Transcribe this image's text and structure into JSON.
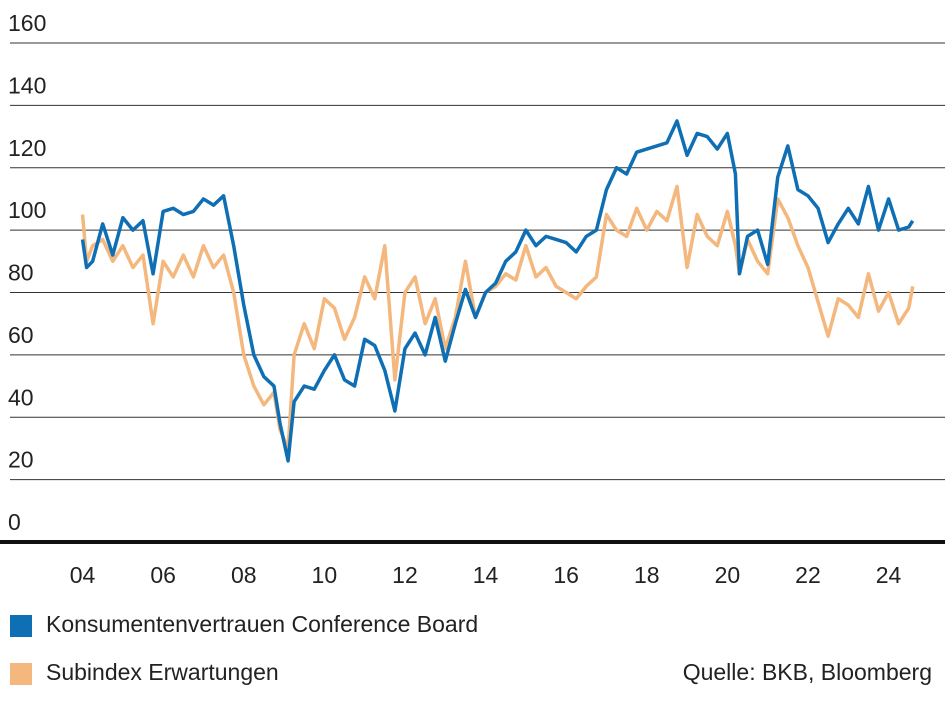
{
  "chart_data": {
    "type": "line",
    "x": [
      2004.0,
      2004.1,
      2004.25,
      2004.5,
      2004.75,
      2005.0,
      2005.25,
      2005.5,
      2005.75,
      2006.0,
      2006.25,
      2006.5,
      2006.75,
      2007.0,
      2007.25,
      2007.5,
      2007.75,
      2008.0,
      2008.25,
      2008.5,
      2008.75,
      2008.9,
      2009.1,
      2009.25,
      2009.5,
      2009.75,
      2010.0,
      2010.25,
      2010.5,
      2010.75,
      2011.0,
      2011.25,
      2011.5,
      2011.75,
      2012.0,
      2012.25,
      2012.5,
      2012.75,
      2013.0,
      2013.25,
      2013.5,
      2013.75,
      2014.0,
      2014.25,
      2014.5,
      2014.75,
      2015.0,
      2015.25,
      2015.5,
      2015.75,
      2016.0,
      2016.25,
      2016.5,
      2016.75,
      2017.0,
      2017.25,
      2017.5,
      2017.75,
      2018.0,
      2018.25,
      2018.5,
      2018.75,
      2019.0,
      2019.25,
      2019.5,
      2019.75,
      2020.0,
      2020.2,
      2020.3,
      2020.5,
      2020.75,
      2021.0,
      2021.25,
      2021.5,
      2021.75,
      2022.0,
      2022.25,
      2022.5,
      2022.75,
      2023.0,
      2023.25,
      2023.5,
      2023.75,
      2024.0,
      2024.25,
      2024.5,
      2024.6
    ],
    "series": [
      {
        "name": "Konsumentenvertrauen Conference Board",
        "color": "#0f6fb4",
        "values": [
          97,
          88,
          90,
          102,
          92,
          104,
          100,
          103,
          86,
          106,
          107,
          105,
          106,
          110,
          108,
          111,
          95,
          76,
          60,
          53,
          50,
          38,
          26,
          45,
          50,
          49,
          55,
          60,
          52,
          50,
          65,
          63,
          55,
          42,
          62,
          67,
          60,
          72,
          58,
          70,
          81,
          72,
          80,
          83,
          90,
          93,
          100,
          95,
          98,
          97,
          96,
          93,
          98,
          100,
          113,
          120,
          118,
          125,
          126,
          127,
          128,
          135,
          124,
          131,
          130,
          126,
          131,
          118,
          86,
          98,
          100,
          89,
          117,
          127,
          113,
          111,
          107,
          96,
          102,
          107,
          102,
          114,
          100,
          110,
          100,
          101,
          103
        ]
      },
      {
        "name": "Subindex Erwartungen",
        "color": "#f4b77d",
        "values": [
          105,
          90,
          95,
          97,
          90,
          95,
          88,
          92,
          70,
          90,
          85,
          92,
          85,
          95,
          88,
          92,
          80,
          60,
          50,
          44,
          48,
          36,
          30,
          60,
          70,
          62,
          78,
          75,
          65,
          72,
          85,
          78,
          95,
          52,
          80,
          85,
          70,
          78,
          62,
          72,
          90,
          72,
          80,
          82,
          86,
          84,
          95,
          85,
          88,
          82,
          80,
          78,
          82,
          85,
          105,
          100,
          98,
          107,
          100,
          106,
          103,
          114,
          88,
          105,
          98,
          95,
          106,
          95,
          86,
          97,
          90,
          86,
          110,
          104,
          95,
          88,
          77,
          66,
          78,
          76,
          72,
          86,
          74,
          80,
          70,
          75,
          82
        ]
      }
    ],
    "xlim": [
      2002.2,
      2025.4
    ],
    "xticks": [
      {
        "value": 2004,
        "label": "04"
      },
      {
        "value": 2006,
        "label": "06"
      },
      {
        "value": 2008,
        "label": "08"
      },
      {
        "value": 2010,
        "label": "10"
      },
      {
        "value": 2012,
        "label": "12"
      },
      {
        "value": 2014,
        "label": "14"
      },
      {
        "value": 2016,
        "label": "16"
      },
      {
        "value": 2018,
        "label": "18"
      },
      {
        "value": 2020,
        "label": "20"
      },
      {
        "value": 2022,
        "label": "22"
      },
      {
        "value": 2024,
        "label": "24"
      }
    ],
    "ylim": [
      0,
      160
    ],
    "yticks": [
      0,
      20,
      40,
      60,
      80,
      100,
      120,
      140,
      160
    ],
    "grid": true,
    "source": "Quelle: BKB, Bloomberg"
  }
}
